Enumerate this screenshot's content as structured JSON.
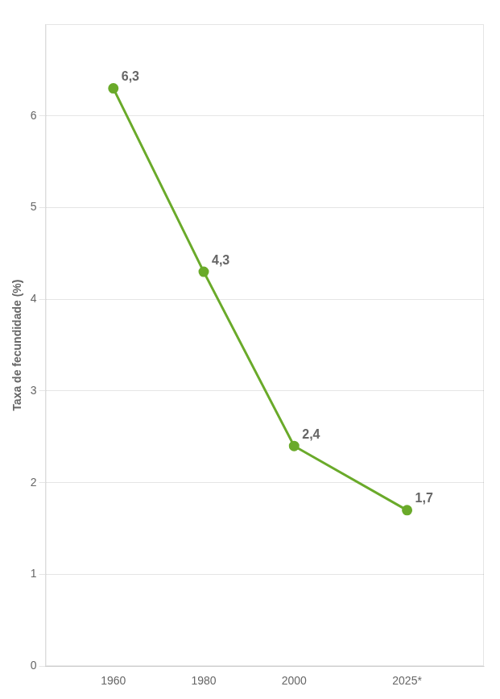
{
  "chart_data": {
    "type": "line",
    "x": [
      1960,
      1980,
      2000,
      2025
    ],
    "values": [
      6.3,
      4.3,
      2.4,
      1.7
    ],
    "value_labels": [
      "6,3",
      "4,3",
      "2,4",
      "1,7"
    ],
    "data_labels": true,
    "color": "#6aaa2a",
    "marker": "circle",
    "ylabel": "Taxa de fecundidade (%)",
    "xlim": [
      1945,
      2042
    ],
    "xticks": [
      1960,
      1980,
      2000,
      {
        "value": 2025,
        "label": "2025*"
      }
    ],
    "ylim": [
      0,
      7.0
    ],
    "yticks": [
      0,
      1,
      2,
      3,
      4,
      5,
      6
    ],
    "grid": true
  }
}
